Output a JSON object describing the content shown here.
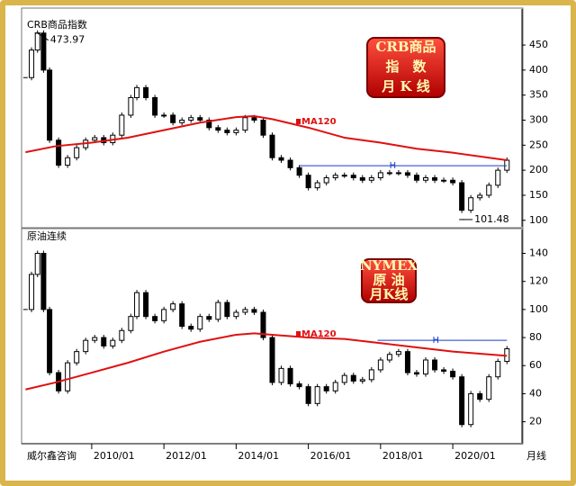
{
  "chart_data": [
    {
      "type": "candlestick",
      "title": "CRB商品指数",
      "badge": [
        "CRB商品",
        "指　数",
        "月 K 线"
      ],
      "x": [
        "2008/03",
        "2008/05",
        "2008/07",
        "2008/09",
        "2008/11",
        "2009/02",
        "2009/05",
        "2009/08",
        "2009/11",
        "2010/02",
        "2010/05",
        "2010/08",
        "2010/11",
        "2011/02",
        "2011/04",
        "2011/07",
        "2011/10",
        "2012/01",
        "2012/04",
        "2012/07",
        "2012/10",
        "2013/01",
        "2013/04",
        "2013/07",
        "2013/10",
        "2014/01",
        "2014/04",
        "2014/07",
        "2014/10",
        "2015/01",
        "2015/04",
        "2015/07",
        "2015/10",
        "2016/01",
        "2016/04",
        "2016/07",
        "2016/10",
        "2017/01",
        "2017/04",
        "2017/07",
        "2017/10",
        "2018/01",
        "2018/04",
        "2018/07",
        "2018/10",
        "2019/01",
        "2019/04",
        "2019/07",
        "2019/10",
        "2020/01",
        "2020/04",
        "2020/07",
        "2020/10",
        "2021/01",
        "2021/04",
        "2021/07"
      ],
      "series": [
        {
          "name": "CRB商品指数",
          "color": "#000000",
          "values": [
            385,
            440,
            474,
            400,
            260,
            210,
            225,
            245,
            260,
            265,
            255,
            270,
            310,
            345,
            365,
            345,
            310,
            310,
            295,
            300,
            305,
            300,
            285,
            280,
            275,
            280,
            305,
            300,
            270,
            225,
            220,
            205,
            190,
            165,
            175,
            185,
            190,
            190,
            185,
            180,
            185,
            195,
            195,
            195,
            190,
            180,
            185,
            180,
            180,
            175,
            120,
            145,
            150,
            170,
            200,
            220
          ]
        },
        {
          "name": "MA120",
          "color": "#e01010",
          "x": [
            "2008/03",
            "2009/01",
            "2010/01",
            "2011/01",
            "2012/01",
            "2013/01",
            "2014/01",
            "2014/07",
            "2015/01",
            "2016/01",
            "2017/01",
            "2018/01",
            "2019/01",
            "2020/01",
            "2021/07"
          ],
          "values": [
            236,
            248,
            255,
            265,
            280,
            295,
            306,
            308,
            302,
            285,
            265,
            255,
            243,
            235,
            220
          ]
        }
      ],
      "hline": {
        "label": "H",
        "value": 209,
        "x": [
          "2015/10",
          "2021/07"
        ]
      },
      "annotations": [
        {
          "label": "473.97",
          "value": 473.97,
          "x": "2008/07"
        },
        {
          "label": "101.48",
          "value": 101.48,
          "x": "2020/04"
        }
      ],
      "xlim": [
        "2008/02",
        "2021/12"
      ],
      "ylim": [
        87,
        522
      ],
      "yticks": [
        100,
        150,
        200,
        250,
        300,
        350,
        400,
        450
      ]
    },
    {
      "type": "candlestick",
      "title": "原油连续",
      "badge": [
        "NYMEX",
        "原 油",
        "月K线"
      ],
      "x": [
        "2008/03",
        "2008/05",
        "2008/07",
        "2008/09",
        "2008/11",
        "2009/02",
        "2009/05",
        "2009/08",
        "2009/11",
        "2010/02",
        "2010/05",
        "2010/08",
        "2010/11",
        "2011/02",
        "2011/04",
        "2011/07",
        "2011/10",
        "2012/01",
        "2012/04",
        "2012/07",
        "2012/10",
        "2013/01",
        "2013/04",
        "2013/07",
        "2013/10",
        "2014/01",
        "2014/04",
        "2014/07",
        "2014/10",
        "2015/01",
        "2015/04",
        "2015/07",
        "2015/10",
        "2016/01",
        "2016/04",
        "2016/07",
        "2016/10",
        "2017/01",
        "2017/04",
        "2017/07",
        "2017/10",
        "2018/01",
        "2018/04",
        "2018/07",
        "2018/10",
        "2019/01",
        "2019/04",
        "2019/07",
        "2019/10",
        "2020/01",
        "2020/04",
        "2020/07",
        "2020/10",
        "2021/01",
        "2021/04",
        "2021/07"
      ],
      "series": [
        {
          "name": "原油连续",
          "color": "#000000",
          "values": [
            100,
            125,
            140,
            100,
            55,
            42,
            62,
            70,
            78,
            80,
            74,
            78,
            85,
            95,
            112,
            95,
            92,
            100,
            104,
            88,
            86,
            95,
            93,
            105,
            95,
            98,
            100,
            98,
            80,
            48,
            58,
            47,
            45,
            33,
            45,
            42,
            48,
            53,
            49,
            50,
            57,
            64,
            68,
            70,
            55,
            54,
            64,
            57,
            56,
            52,
            18,
            40,
            36,
            52,
            63,
            72
          ]
        },
        {
          "name": "MA120",
          "color": "#e01010",
          "x": [
            "2008/03",
            "2009/01",
            "2010/01",
            "2011/01",
            "2012/01",
            "2013/01",
            "2014/01",
            "2014/07",
            "2015/01",
            "2016/01",
            "2017/01",
            "2018/01",
            "2019/01",
            "2020/01",
            "2021/07"
          ],
          "values": [
            43,
            48,
            55,
            62,
            70,
            77,
            82,
            83,
            82,
            80,
            79,
            76,
            73,
            70,
            67
          ]
        }
      ],
      "hline": {
        "label": "H",
        "value": 78,
        "x": [
          "2017/12",
          "2021/07"
        ]
      },
      "xlim": [
        "2008/02",
        "2021/12"
      ],
      "ylim": [
        5,
        157
      ],
      "yticks": [
        20,
        40,
        60,
        80,
        100,
        120,
        140
      ],
      "xticks": [
        "2010/01",
        "2012/01",
        "2014/01",
        "2016/01",
        "2018/01",
        "2020/01"
      ]
    }
  ],
  "footer": {
    "source": "威尔鑫咨询",
    "period": "月线"
  }
}
